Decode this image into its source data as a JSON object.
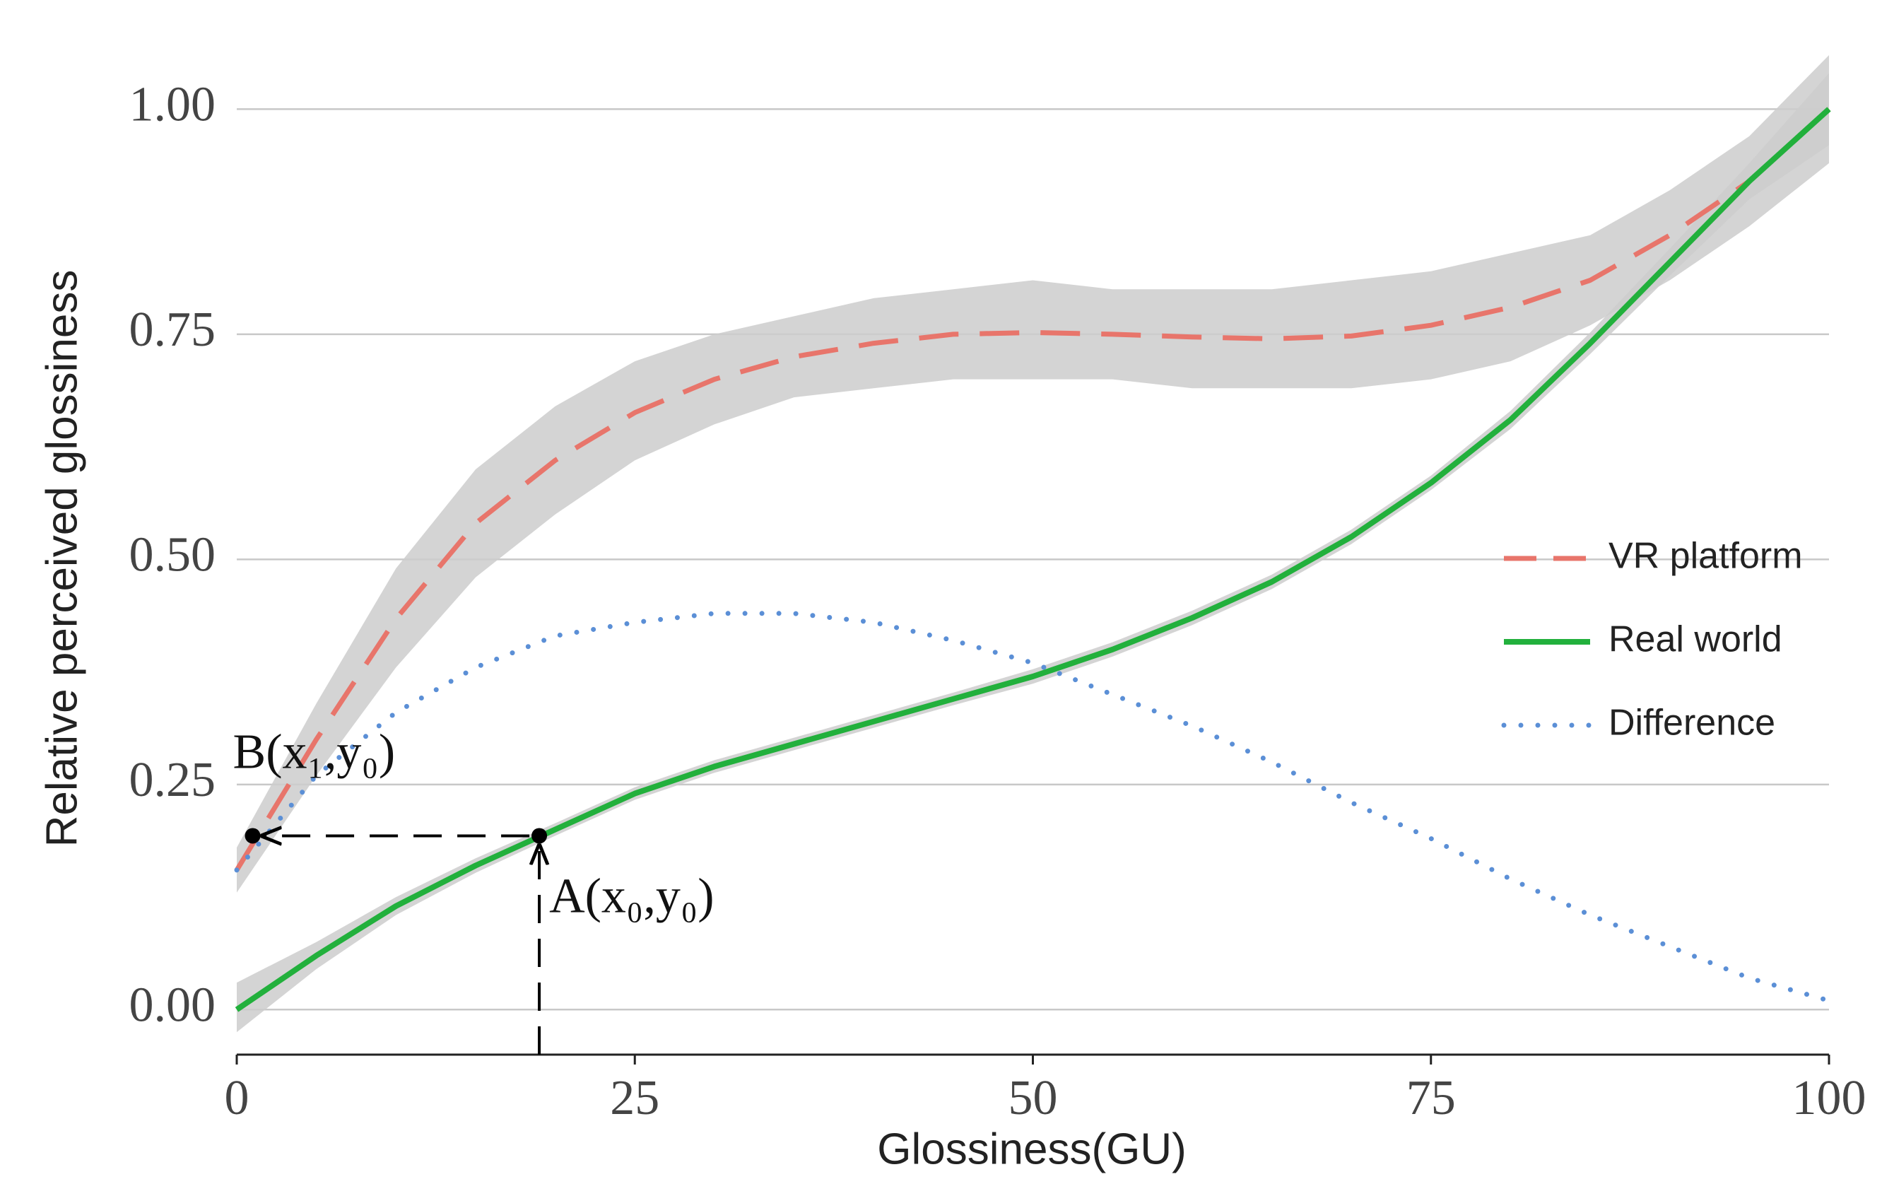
{
  "chart_data": {
    "type": "line",
    "x_label": "Glossiness(GU)",
    "y_label": "Relative perceived glossiness",
    "x": [
      0,
      5,
      10,
      15,
      20,
      25,
      30,
      35,
      40,
      45,
      50,
      55,
      60,
      65,
      70,
      75,
      80,
      85,
      90,
      95,
      100
    ],
    "series": [
      {
        "name": "VR platform",
        "color": "#e8756b",
        "style": "dashed",
        "values": [
          0.155,
          0.3,
          0.434,
          0.54,
          0.61,
          0.663,
          0.7,
          0.725,
          0.74,
          0.75,
          0.752,
          0.75,
          0.747,
          0.745,
          0.748,
          0.76,
          0.78,
          0.81,
          0.86,
          0.92,
          1.0
        ],
        "band": {
          "color": "#cccccc",
          "lower": [
            0.13,
            0.26,
            0.38,
            0.48,
            0.55,
            0.61,
            0.65,
            0.68,
            0.69,
            0.7,
            0.7,
            0.7,
            0.69,
            0.69,
            0.69,
            0.7,
            0.72,
            0.76,
            0.81,
            0.87,
            0.94
          ],
          "upper": [
            0.18,
            0.34,
            0.49,
            0.6,
            0.67,
            0.72,
            0.75,
            0.77,
            0.79,
            0.8,
            0.81,
            0.8,
            0.8,
            0.8,
            0.81,
            0.82,
            0.84,
            0.86,
            0.91,
            0.97,
            1.06
          ]
        }
      },
      {
        "name": "Real world",
        "color": "#22b03c",
        "style": "solid",
        "values": [
          0.0,
          0.06,
          0.115,
          0.16,
          0.2,
          0.24,
          0.27,
          0.295,
          0.32,
          0.345,
          0.37,
          0.4,
          0.435,
          0.475,
          0.525,
          0.585,
          0.655,
          0.74,
          0.83,
          0.92,
          1.0
        ],
        "band": {
          "color": "#cccccc",
          "lower": [
            -0.025,
            0.045,
            0.105,
            0.152,
            0.193,
            0.233,
            0.263,
            0.288,
            0.313,
            0.338,
            0.362,
            0.392,
            0.427,
            0.467,
            0.517,
            0.577,
            0.645,
            0.728,
            0.815,
            0.9,
            0.96
          ],
          "upper": [
            0.03,
            0.075,
            0.125,
            0.168,
            0.207,
            0.247,
            0.277,
            0.302,
            0.327,
            0.352,
            0.378,
            0.408,
            0.443,
            0.483,
            0.533,
            0.593,
            0.665,
            0.752,
            0.845,
            0.94,
            1.04
          ]
        }
      },
      {
        "name": "Difference",
        "color": "#5b8fd6",
        "style": "dotted",
        "values": [
          0.155,
          0.26,
          0.33,
          0.38,
          0.415,
          0.43,
          0.44,
          0.44,
          0.43,
          0.41,
          0.385,
          0.35,
          0.315,
          0.275,
          0.23,
          0.19,
          0.145,
          0.105,
          0.07,
          0.035,
          0.01
        ]
      }
    ],
    "points": [
      {
        "label": "A(x₀,y₀)",
        "x": 19,
        "y": 0.193
      },
      {
        "label": "B(x₁,y₀)",
        "x": 1,
        "y": 0.193
      }
    ],
    "xlim": [
      0,
      100
    ],
    "xticks": [
      0,
      25,
      50,
      75,
      100
    ],
    "ylim": [
      -0.05,
      1.06
    ],
    "yticks": [
      {
        "value": 0,
        "label": "0.00"
      },
      {
        "value": 0.25,
        "label": "0.25"
      },
      {
        "value": 0.5,
        "label": "0.50"
      },
      {
        "value": 0.75,
        "label": "0.75"
      },
      {
        "value": 1,
        "label": "1.00"
      }
    ],
    "grid": true,
    "legend": "center right"
  }
}
